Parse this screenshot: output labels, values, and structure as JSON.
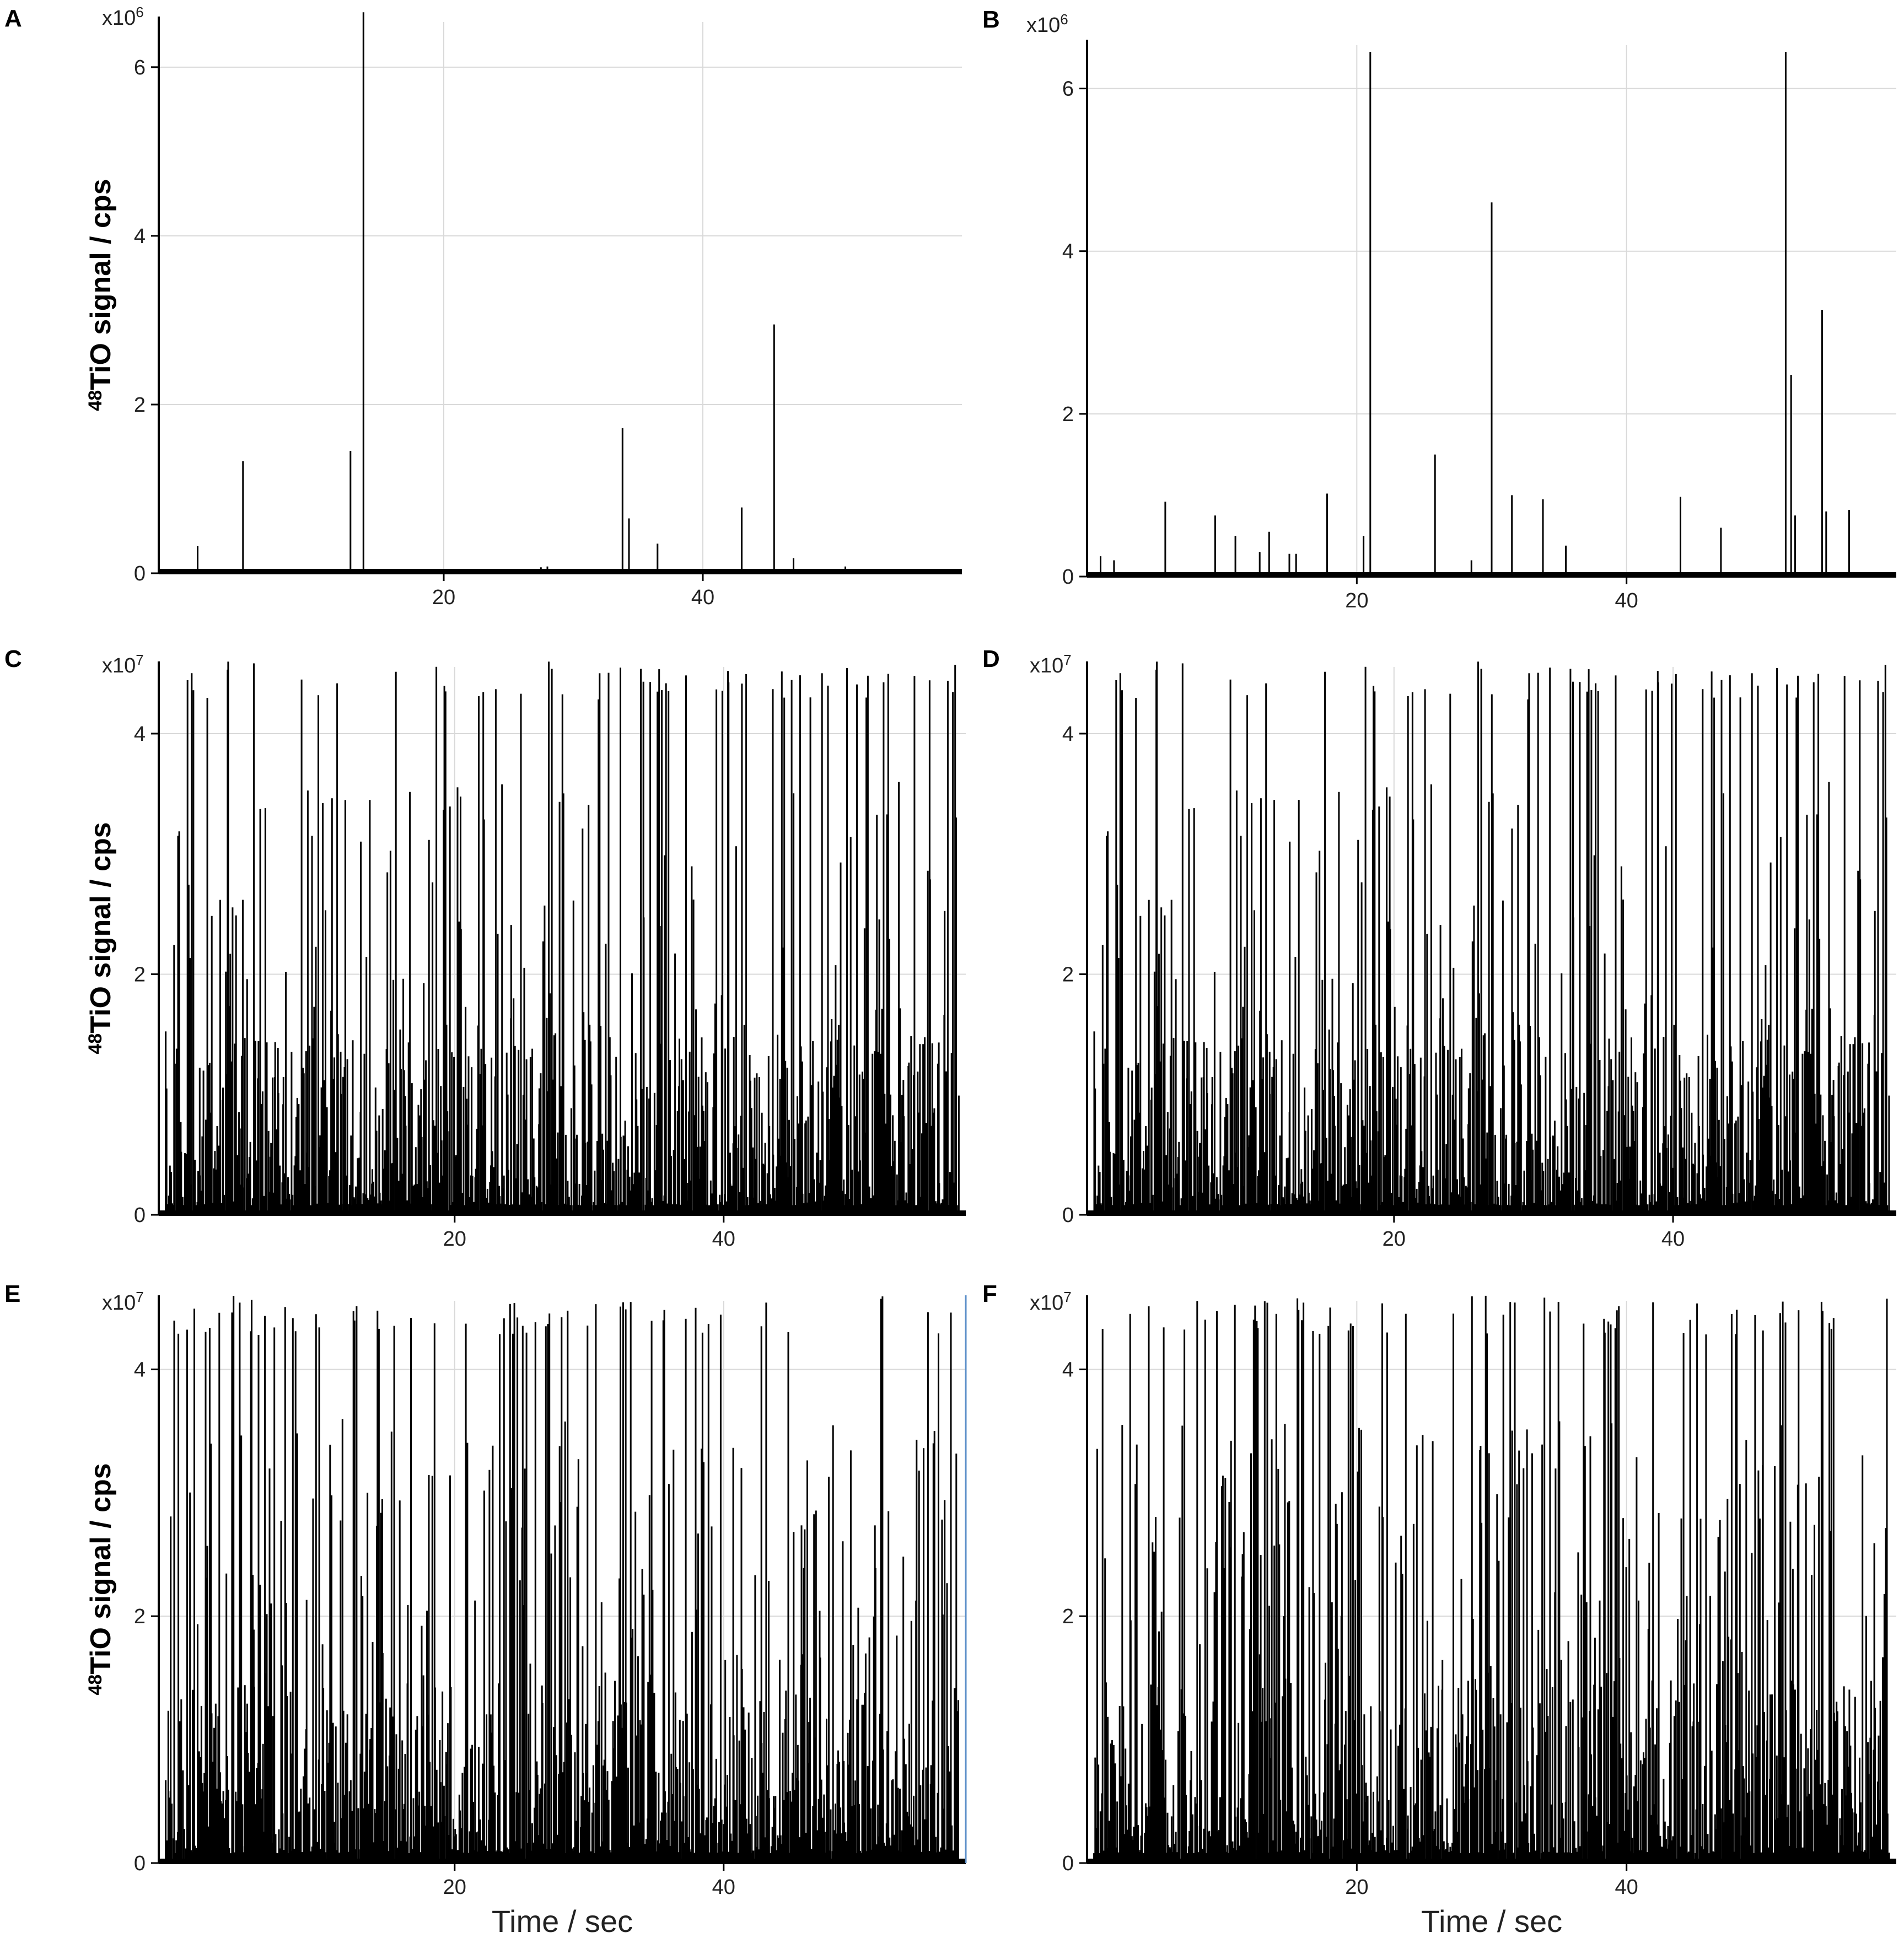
{
  "figure": {
    "panel_letters": [
      "A",
      "B",
      "C",
      "D",
      "E",
      "F"
    ],
    "y_axis_label_prefix": "48",
    "y_axis_label_rest": "TiO signal / cps",
    "x_axis_label": "Time / sec"
  },
  "colors": {
    "signal": "#000000",
    "grid": "#d9d9d9",
    "axis": "#000000",
    "right_edge_E": "#5b8fc9"
  },
  "chart_data": [
    {
      "panel": "A",
      "type": "line",
      "multiplier_base": "x10",
      "multiplier_exp": "6",
      "x_ticks": [
        20,
        40
      ],
      "y_ticks": [
        0,
        2,
        4,
        6
      ],
      "xlim": [
        -2,
        60
      ],
      "ylim": [
        0,
        6.6
      ],
      "grid": true,
      "spikes": [
        [
          1,
          0.32
        ],
        [
          4.5,
          1.33
        ],
        [
          6,
          0.05
        ],
        [
          8.8,
          0.02
        ],
        [
          11.2,
          0.05
        ],
        [
          12.8,
          1.45
        ],
        [
          13.8,
          6.65
        ],
        [
          19,
          0.02
        ],
        [
          27.5,
          0.07
        ],
        [
          28,
          0.08
        ],
        [
          33.8,
          1.72
        ],
        [
          34.3,
          0.65
        ],
        [
          36.5,
          0.35
        ],
        [
          43,
          0.78
        ],
        [
          45.5,
          2.95
        ],
        [
          47,
          0.18
        ],
        [
          51,
          0.08
        ],
        [
          55,
          0.03
        ]
      ]
    },
    {
      "panel": "B",
      "type": "line",
      "multiplier_base": "x10",
      "multiplier_exp": "6",
      "x_ticks": [
        20,
        40
      ],
      "y_ticks": [
        0,
        2,
        4,
        6
      ],
      "xlim": [
        0,
        60
      ],
      "ylim": [
        0,
        6.6
      ],
      "grid": true,
      "spikes": [
        [
          1,
          0.25
        ],
        [
          2,
          0.2
        ],
        [
          5.8,
          0.92
        ],
        [
          9.5,
          0.75
        ],
        [
          11,
          0.5
        ],
        [
          12.8,
          0.3
        ],
        [
          13.5,
          0.55
        ],
        [
          15,
          0.28
        ],
        [
          15.5,
          0.28
        ],
        [
          17.8,
          1.02
        ],
        [
          20.5,
          0.5
        ],
        [
          21,
          6.45
        ],
        [
          25.8,
          1.5
        ],
        [
          28.5,
          0.2
        ],
        [
          30,
          4.6
        ],
        [
          31.5,
          1.0
        ],
        [
          33.8,
          0.95
        ],
        [
          35.5,
          0.38
        ],
        [
          44,
          0.98
        ],
        [
          47,
          0.6
        ],
        [
          51.8,
          6.45
        ],
        [
          52.2,
          2.48
        ],
        [
          52.5,
          0.75
        ],
        [
          54.5,
          3.28
        ],
        [
          54.8,
          0.8
        ],
        [
          56.5,
          0.82
        ]
      ]
    },
    {
      "panel": "C",
      "type": "line",
      "multiplier_base": "x10",
      "multiplier_exp": "7",
      "x_ticks": [
        20,
        40
      ],
      "y_ticks": [
        0,
        2,
        4
      ],
      "xlim": [
        -2,
        58
      ],
      "ylim": [
        0,
        4.6
      ],
      "grid": true,
      "seed": 11
    },
    {
      "panel": "D",
      "type": "line",
      "multiplier_base": "x10",
      "multiplier_exp": "7",
      "x_ticks": [
        20,
        40
      ],
      "y_ticks": [
        0,
        2,
        4
      ],
      "xlim": [
        -2,
        56
      ],
      "ylim": [
        0,
        4.6
      ],
      "grid": true,
      "seed": 11
    },
    {
      "panel": "E",
      "type": "line",
      "multiplier_base": "x10",
      "multiplier_exp": "7",
      "x_ticks": [
        20,
        40
      ],
      "y_ticks": [
        0,
        2,
        4
      ],
      "xlim": [
        -2,
        58
      ],
      "ylim": [
        0,
        4.6
      ],
      "grid": true,
      "seed": 29
    },
    {
      "panel": "F",
      "type": "line",
      "multiplier_base": "x10",
      "multiplier_exp": "7",
      "x_ticks": [
        20,
        40
      ],
      "y_ticks": [
        0,
        2,
        4
      ],
      "xlim": [
        0,
        60
      ],
      "ylim": [
        0,
        4.6
      ],
      "grid": true,
      "seed": 47
    }
  ]
}
